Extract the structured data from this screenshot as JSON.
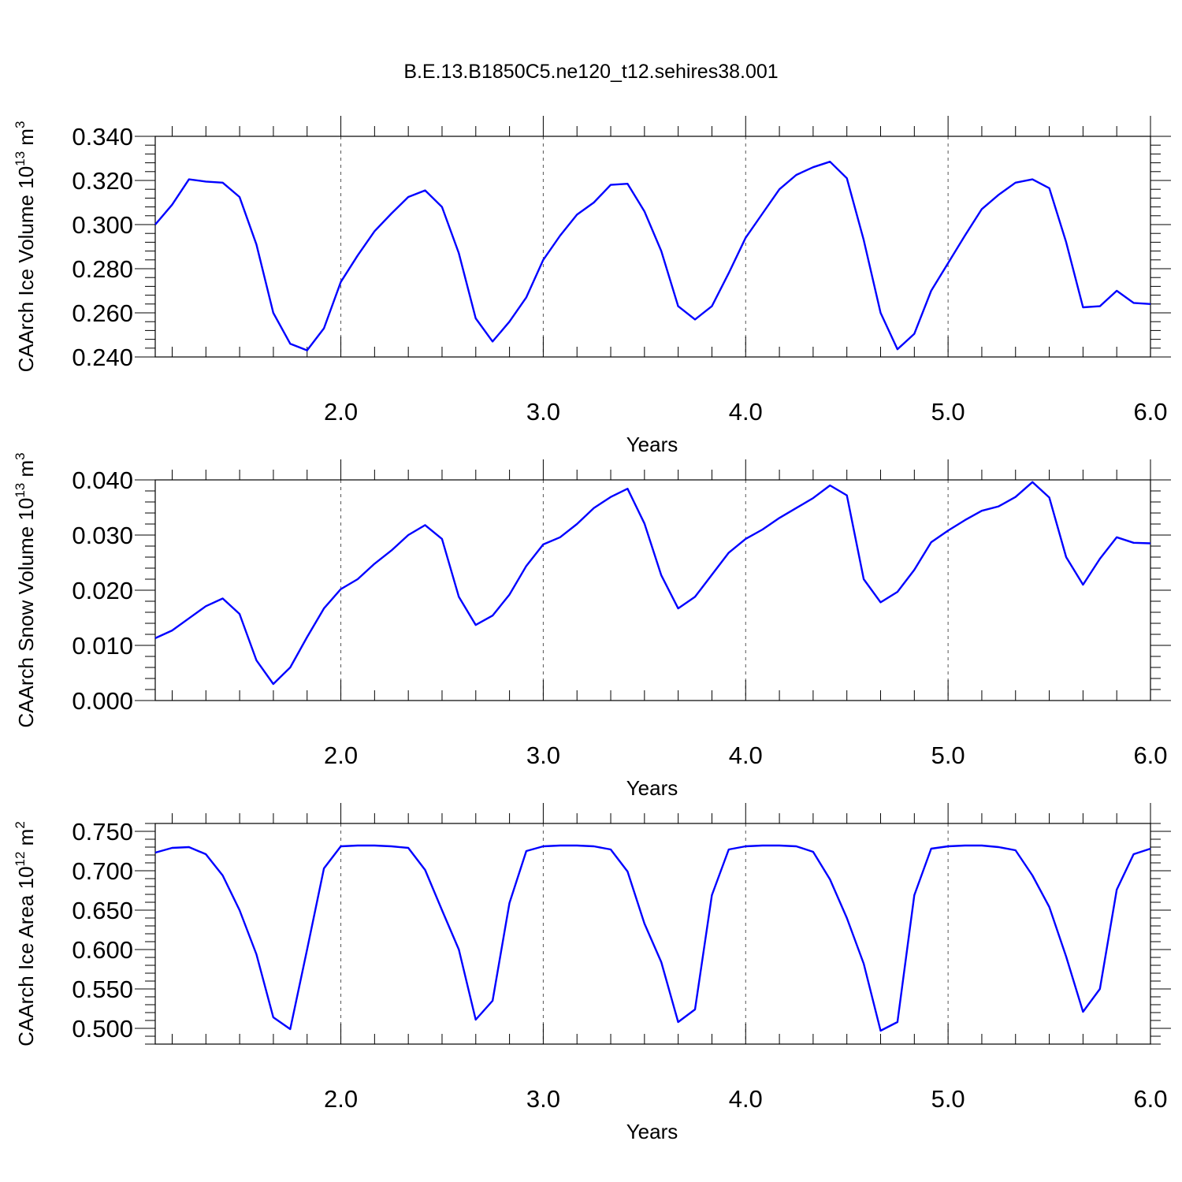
{
  "title": "B.E.13.B1850C5.ne120_t12.sehires38.001",
  "colors": {
    "series": "#0000ff",
    "axis": "#000000",
    "grid": "#555555"
  },
  "chart_data": [
    {
      "type": "line",
      "xlabel": "Years",
      "ylabel": "CAArch Ice Volume 10",
      "ylabel_exp": "13",
      "ylabel_unit": " m",
      "ylabel_unit_exp": "3",
      "xlim": [
        1.083,
        6.0
      ],
      "ylim": [
        0.24,
        0.34
      ],
      "xticks": [
        2.0,
        3.0,
        4.0,
        5.0,
        6.0
      ],
      "xtick_labels": [
        "2.0",
        "3.0",
        "4.0",
        "5.0",
        "6.0"
      ],
      "yticks": [
        0.24,
        0.26,
        0.28,
        0.3,
        0.32,
        0.34
      ],
      "ytick_labels": [
        "0.240",
        "0.260",
        "0.280",
        "0.300",
        "0.320",
        "0.340"
      ],
      "grid": "vertical dashed at major x ticks",
      "series": [
        {
          "values": [
            0.3,
            0.309,
            0.3205,
            0.3195,
            0.319,
            0.3125,
            0.291,
            0.26,
            0.246,
            0.243,
            0.253,
            0.274,
            0.286,
            0.297,
            0.305,
            0.3125,
            0.3155,
            0.308,
            0.287,
            0.2575,
            0.247,
            0.256,
            0.267,
            0.284,
            0.295,
            0.3045,
            0.31,
            0.318,
            0.3185,
            0.306,
            0.288,
            0.263,
            0.257,
            0.263,
            0.278,
            0.294,
            0.305,
            0.316,
            0.3225,
            0.326,
            0.3285,
            0.321,
            0.293,
            0.26,
            0.2435,
            0.2505,
            0.27,
            0.2825,
            0.295,
            0.307,
            0.3135,
            0.319,
            0.3205,
            0.3165,
            0.292,
            0.2625,
            0.263,
            0.27,
            0.2645,
            0.264
          ]
        }
      ]
    },
    {
      "type": "line",
      "xlabel": "Years",
      "ylabel": "CAArch Snow Volume 10",
      "ylabel_exp": "13",
      "ylabel_unit": " m",
      "ylabel_unit_exp": "3",
      "xlim": [
        1.083,
        6.0
      ],
      "ylim": [
        0.0,
        0.04
      ],
      "xticks": [
        2.0,
        3.0,
        4.0,
        5.0,
        6.0
      ],
      "xtick_labels": [
        "2.0",
        "3.0",
        "4.0",
        "5.0",
        "6.0"
      ],
      "yticks": [
        0.0,
        0.01,
        0.02,
        0.03,
        0.04
      ],
      "ytick_labels": [
        "0.000",
        "0.010",
        "0.020",
        "0.030",
        "0.040"
      ],
      "grid": "vertical dashed at major x ticks",
      "series": [
        {
          "values": [
            0.0113,
            0.0127,
            0.0149,
            0.0171,
            0.0185,
            0.0157,
            0.0073,
            0.003,
            0.006,
            0.0115,
            0.0167,
            0.0202,
            0.022,
            0.0248,
            0.0272,
            0.03,
            0.0318,
            0.0293,
            0.0188,
            0.0137,
            0.0154,
            0.0192,
            0.0244,
            0.0283,
            0.0296,
            0.032,
            0.0349,
            0.0369,
            0.0384,
            0.0321,
            0.0227,
            0.0167,
            0.0188,
            0.0228,
            0.0268,
            0.0293,
            0.031,
            0.0331,
            0.0349,
            0.0367,
            0.039,
            0.0372,
            0.022,
            0.0178,
            0.0197,
            0.0237,
            0.0287,
            0.0308,
            0.0327,
            0.0344,
            0.0352,
            0.0369,
            0.0396,
            0.0368,
            0.026,
            0.021,
            0.0257,
            0.0296,
            0.0286,
            0.0285
          ]
        }
      ]
    },
    {
      "type": "line",
      "xlabel": "Years",
      "ylabel": "CAArch Ice Area 10",
      "ylabel_exp": "12",
      "ylabel_unit": " m",
      "ylabel_unit_exp": "2",
      "xlim": [
        1.083,
        6.0
      ],
      "ylim": [
        0.48,
        0.76
      ],
      "xticks": [
        2.0,
        3.0,
        4.0,
        5.0,
        6.0
      ],
      "xtick_labels": [
        "2.0",
        "3.0",
        "4.0",
        "5.0",
        "6.0"
      ],
      "yticks": [
        0.5,
        0.55,
        0.6,
        0.65,
        0.7,
        0.75
      ],
      "ytick_labels": [
        "0.500",
        "0.550",
        "0.600",
        "0.650",
        "0.700",
        "0.750"
      ],
      "grid": "vertical dashed at major x ticks",
      "series": [
        {
          "values": [
            0.723,
            0.729,
            0.73,
            0.721,
            0.694,
            0.65,
            0.594,
            0.514,
            0.499,
            0.6,
            0.703,
            0.731,
            0.732,
            0.732,
            0.731,
            0.729,
            0.701,
            0.65,
            0.6,
            0.511,
            0.535,
            0.659,
            0.725,
            0.731,
            0.732,
            0.732,
            0.731,
            0.727,
            0.699,
            0.633,
            0.584,
            0.508,
            0.524,
            0.669,
            0.727,
            0.731,
            0.732,
            0.732,
            0.731,
            0.724,
            0.689,
            0.64,
            0.582,
            0.497,
            0.508,
            0.669,
            0.728,
            0.731,
            0.732,
            0.732,
            0.73,
            0.726,
            0.694,
            0.654,
            0.591,
            0.521,
            0.55,
            0.676,
            0.721,
            0.728
          ]
        }
      ]
    }
  ]
}
